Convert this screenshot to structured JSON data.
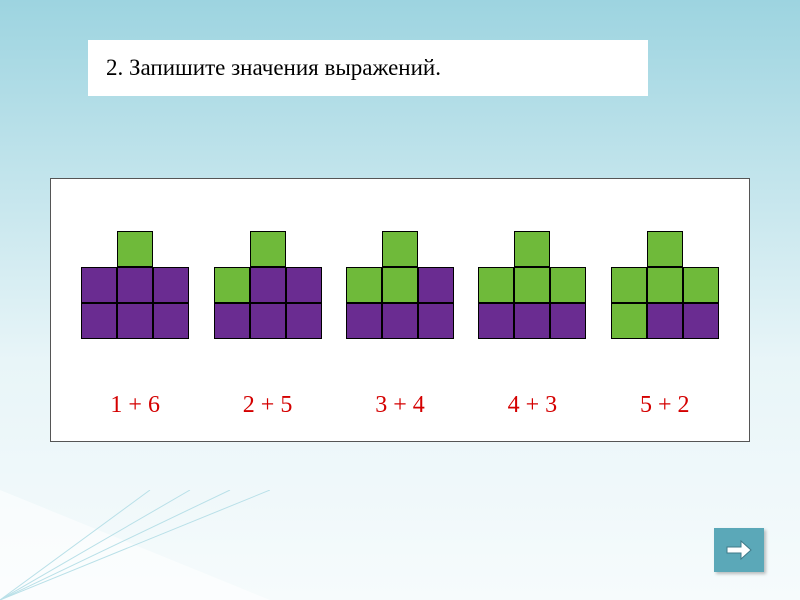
{
  "title": "2. Запишите значения выражений.",
  "colors": {
    "green": "#6fba3a",
    "purple": "#6a2c91",
    "cell_border": "#000000",
    "label_color": "#d40000",
    "slide_bg_top": "#9dd4e0",
    "slide_bg_bottom": "#f6fbfc",
    "nav_bg": "#5ba8b8"
  },
  "cell_size": 36,
  "figures": [
    {
      "label": "1 + 6",
      "cells": [
        {
          "row": 0,
          "col": 1,
          "c": "green"
        },
        {
          "row": 1,
          "col": 0,
          "c": "purple"
        },
        {
          "row": 1,
          "col": 1,
          "c": "purple"
        },
        {
          "row": 1,
          "col": 2,
          "c": "purple"
        },
        {
          "row": 2,
          "col": 0,
          "c": "purple"
        },
        {
          "row": 2,
          "col": 1,
          "c": "purple"
        },
        {
          "row": 2,
          "col": 2,
          "c": "purple"
        }
      ]
    },
    {
      "label": "2 + 5",
      "cells": [
        {
          "row": 0,
          "col": 1,
          "c": "green"
        },
        {
          "row": 1,
          "col": 0,
          "c": "green"
        },
        {
          "row": 1,
          "col": 1,
          "c": "purple"
        },
        {
          "row": 1,
          "col": 2,
          "c": "purple"
        },
        {
          "row": 2,
          "col": 0,
          "c": "purple"
        },
        {
          "row": 2,
          "col": 1,
          "c": "purple"
        },
        {
          "row": 2,
          "col": 2,
          "c": "purple"
        }
      ]
    },
    {
      "label": "3 + 4",
      "cells": [
        {
          "row": 0,
          "col": 1,
          "c": "green"
        },
        {
          "row": 1,
          "col": 0,
          "c": "green"
        },
        {
          "row": 1,
          "col": 1,
          "c": "green"
        },
        {
          "row": 1,
          "col": 2,
          "c": "purple"
        },
        {
          "row": 2,
          "col": 0,
          "c": "purple"
        },
        {
          "row": 2,
          "col": 1,
          "c": "purple"
        },
        {
          "row": 2,
          "col": 2,
          "c": "purple"
        }
      ]
    },
    {
      "label": "4 + 3",
      "cells": [
        {
          "row": 0,
          "col": 1,
          "c": "green"
        },
        {
          "row": 1,
          "col": 0,
          "c": "green"
        },
        {
          "row": 1,
          "col": 1,
          "c": "green"
        },
        {
          "row": 1,
          "col": 2,
          "c": "green"
        },
        {
          "row": 2,
          "col": 0,
          "c": "purple"
        },
        {
          "row": 2,
          "col": 1,
          "c": "purple"
        },
        {
          "row": 2,
          "col": 2,
          "c": "purple"
        }
      ]
    },
    {
      "label": "5 + 2",
      "cells": [
        {
          "row": 0,
          "col": 1,
          "c": "green"
        },
        {
          "row": 1,
          "col": 0,
          "c": "green"
        },
        {
          "row": 1,
          "col": 1,
          "c": "green"
        },
        {
          "row": 1,
          "col": 2,
          "c": "green"
        },
        {
          "row": 2,
          "col": 0,
          "c": "green"
        },
        {
          "row": 2,
          "col": 1,
          "c": "purple"
        },
        {
          "row": 2,
          "col": 2,
          "c": "purple"
        }
      ]
    }
  ],
  "nav": {
    "icon": "arrow-right"
  }
}
